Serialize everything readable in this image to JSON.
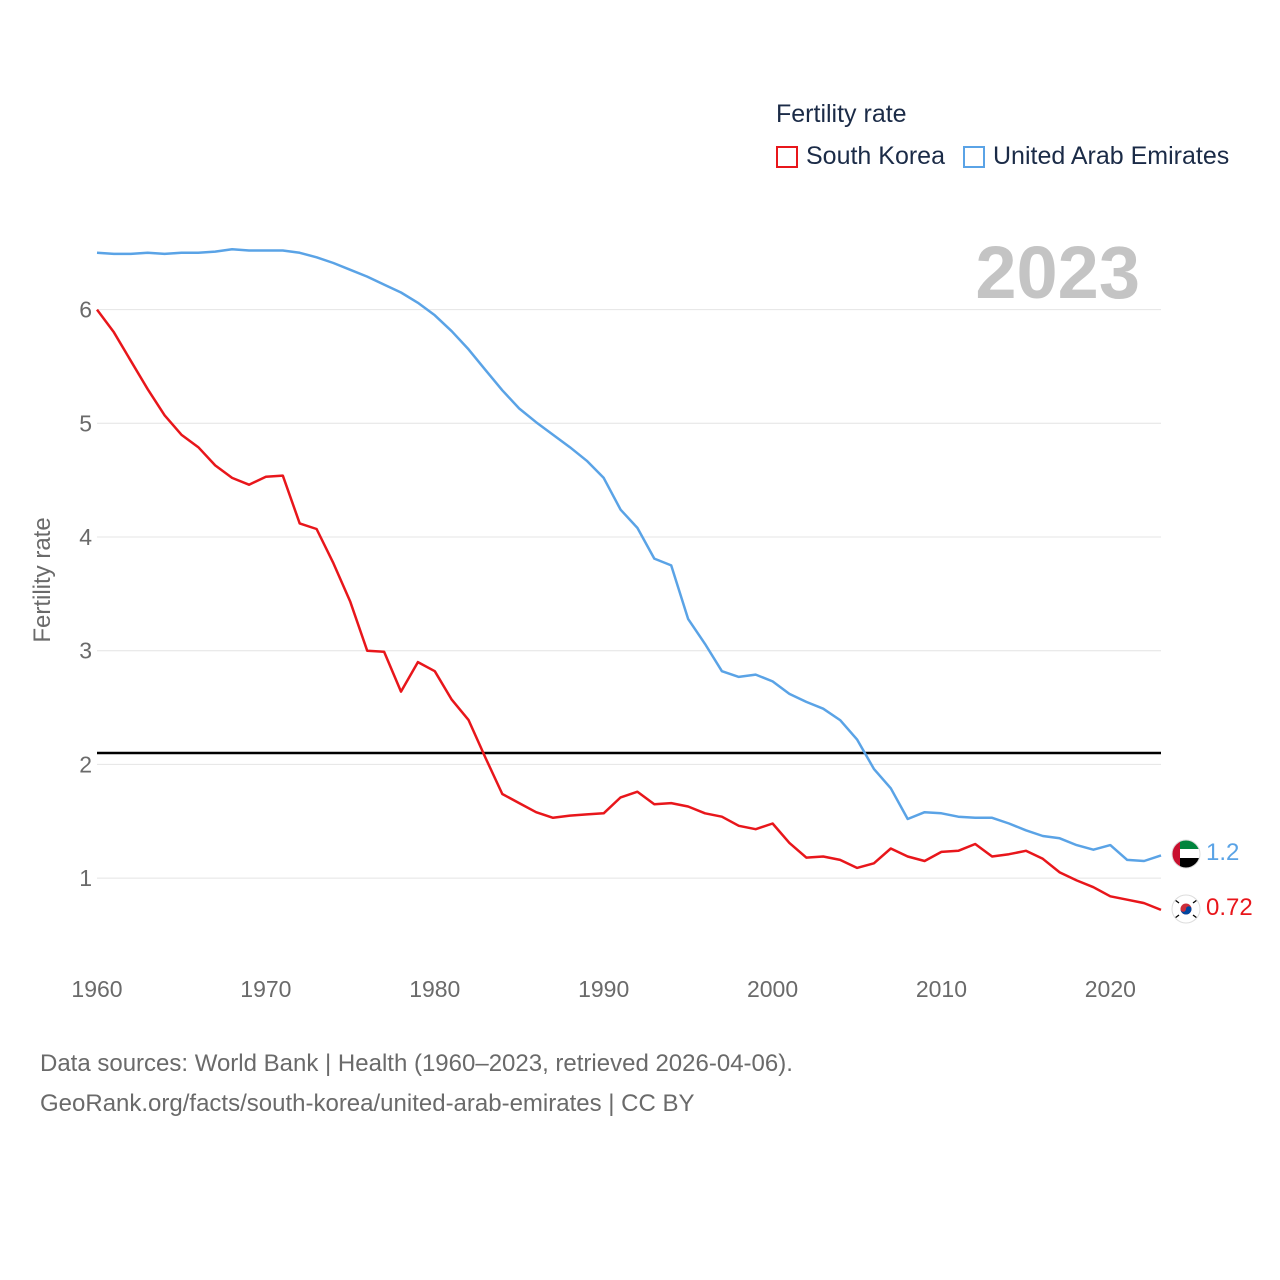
{
  "legend": {
    "title": "Fertility rate",
    "items": [
      {
        "label": "South Korea",
        "color": "#e8161b"
      },
      {
        "label": "United Arab Emirates",
        "color": "#5aa3e6"
      }
    ]
  },
  "source": {
    "line1": "Data sources: World Bank | Health (1960–2023, retrieved 2026-04-06).",
    "line2": "GeoRank.org/facts/south-korea/united-arab-emirates | CC BY"
  },
  "chart_data": {
    "type": "line",
    "title": "Fertility rate",
    "year_label": "2023",
    "xlabel": "",
    "ylabel": "Fertility rate",
    "xlim": [
      1960,
      2023
    ],
    "ylim": [
      0.35,
      6.65
    ],
    "x_ticks": [
      "1960",
      "1970",
      "1980",
      "1990",
      "2000",
      "2010",
      "2020"
    ],
    "x_tick_values": [
      1960,
      1970,
      1980,
      1990,
      2000,
      2010,
      2020
    ],
    "y_ticks": [
      "1",
      "2",
      "3",
      "4",
      "5",
      "6"
    ],
    "y_tick_values": [
      1,
      2,
      3,
      4,
      5,
      6
    ],
    "reference_line": 2.1,
    "x": [
      1960,
      1961,
      1962,
      1963,
      1964,
      1965,
      1966,
      1967,
      1968,
      1969,
      1970,
      1971,
      1972,
      1973,
      1974,
      1975,
      1976,
      1977,
      1978,
      1979,
      1980,
      1981,
      1982,
      1983,
      1984,
      1985,
      1986,
      1987,
      1988,
      1989,
      1990,
      1991,
      1992,
      1993,
      1994,
      1995,
      1996,
      1997,
      1998,
      1999,
      2000,
      2001,
      2002,
      2003,
      2004,
      2005,
      2006,
      2007,
      2008,
      2009,
      2010,
      2011,
      2012,
      2013,
      2014,
      2015,
      2016,
      2017,
      2018,
      2019,
      2020,
      2021,
      2022,
      2023
    ],
    "series": [
      {
        "name": "South Korea",
        "color": "#e8161b",
        "end_label": "0.72",
        "flag": "south-korea-flag",
        "values": [
          6.0,
          5.8,
          5.55,
          5.3,
          5.07,
          4.9,
          4.79,
          4.63,
          4.52,
          4.46,
          4.53,
          4.54,
          4.12,
          4.07,
          3.77,
          3.43,
          3.0,
          2.99,
          2.64,
          2.9,
          2.82,
          2.57,
          2.39,
          2.06,
          1.74,
          1.66,
          1.58,
          1.53,
          1.55,
          1.56,
          1.57,
          1.71,
          1.76,
          1.65,
          1.66,
          1.63,
          1.57,
          1.54,
          1.46,
          1.43,
          1.48,
          1.31,
          1.18,
          1.19,
          1.16,
          1.09,
          1.13,
          1.26,
          1.19,
          1.15,
          1.23,
          1.24,
          1.3,
          1.19,
          1.21,
          1.24,
          1.17,
          1.05,
          0.98,
          0.92,
          0.84,
          0.81,
          0.78,
          0.72
        ]
      },
      {
        "name": "United Arab Emirates",
        "color": "#5aa3e6",
        "end_label": "1.2",
        "flag": "uae-flag",
        "values": [
          6.5,
          6.49,
          6.49,
          6.5,
          6.49,
          6.5,
          6.5,
          6.51,
          6.53,
          6.52,
          6.52,
          6.52,
          6.5,
          6.46,
          6.41,
          6.35,
          6.29,
          6.22,
          6.15,
          6.06,
          5.95,
          5.81,
          5.65,
          5.47,
          5.29,
          5.13,
          5.01,
          4.9,
          4.79,
          4.67,
          4.52,
          4.24,
          4.08,
          3.81,
          3.75,
          3.28,
          3.06,
          2.82,
          2.77,
          2.79,
          2.73,
          2.62,
          2.55,
          2.49,
          2.39,
          2.22,
          1.96,
          1.79,
          1.52,
          1.58,
          1.57,
          1.54,
          1.53,
          1.53,
          1.48,
          1.42,
          1.37,
          1.35,
          1.29,
          1.25,
          1.29,
          1.16,
          1.15,
          1.2
        ]
      }
    ]
  }
}
